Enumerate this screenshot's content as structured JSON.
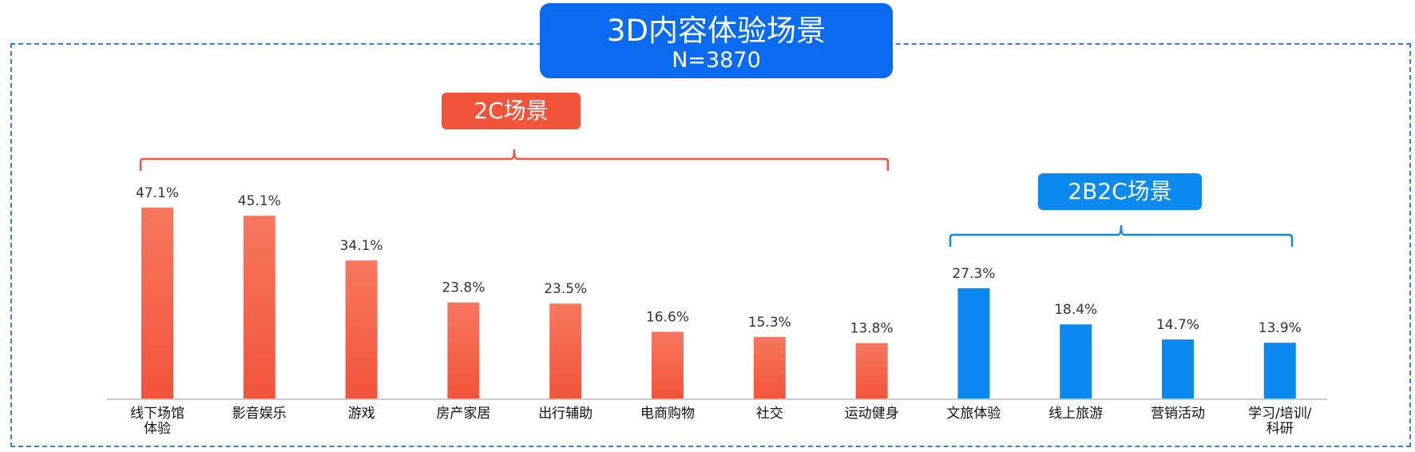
{
  "title": "3D内容体验场景",
  "subtitle": "N=3870",
  "colors": {
    "accent": "#0a6af0",
    "group_2c": "#f2543a",
    "group_2b2c": "#0a8af0"
  },
  "chart_data": {
    "type": "bar",
    "categories": [
      "线下场馆体验",
      "影音娱乐",
      "游戏",
      "房产家居",
      "出行辅助",
      "电商购物",
      "社交",
      "运动健身",
      "文旅体验",
      "线上旅游",
      "营销活动",
      "学习/培训/科研"
    ],
    "category_lines": [
      [
        "线下场馆",
        "体验"
      ],
      [
        "影音娱乐"
      ],
      [
        "游戏"
      ],
      [
        "房产家居"
      ],
      [
        "出行辅助"
      ],
      [
        "电商购物"
      ],
      [
        "社交"
      ],
      [
        "运动健身"
      ],
      [
        "文旅体验"
      ],
      [
        "线上旅游"
      ],
      [
        "营销活动"
      ],
      [
        "学习/培训/",
        "科研"
      ]
    ],
    "values": [
      47.1,
      45.1,
      34.1,
      23.8,
      23.5,
      16.6,
      15.3,
      13.8,
      27.3,
      18.4,
      14.7,
      13.9
    ],
    "value_labels": [
      "47.1%",
      "45.1%",
      "34.1%",
      "23.8%",
      "23.5%",
      "16.6%",
      "15.3%",
      "13.8%",
      "27.3%",
      "18.4%",
      "14.7%",
      "13.9%"
    ],
    "unit": "%",
    "groups": [
      {
        "label": "2C场景",
        "from": 0,
        "to": 7,
        "color": "#f2543a"
      },
      {
        "label": "2B2C场景",
        "from": 8,
        "to": 11,
        "color": "#0a8af0"
      }
    ],
    "ylim": [
      0,
      50
    ],
    "grid": false,
    "legend": "none"
  }
}
